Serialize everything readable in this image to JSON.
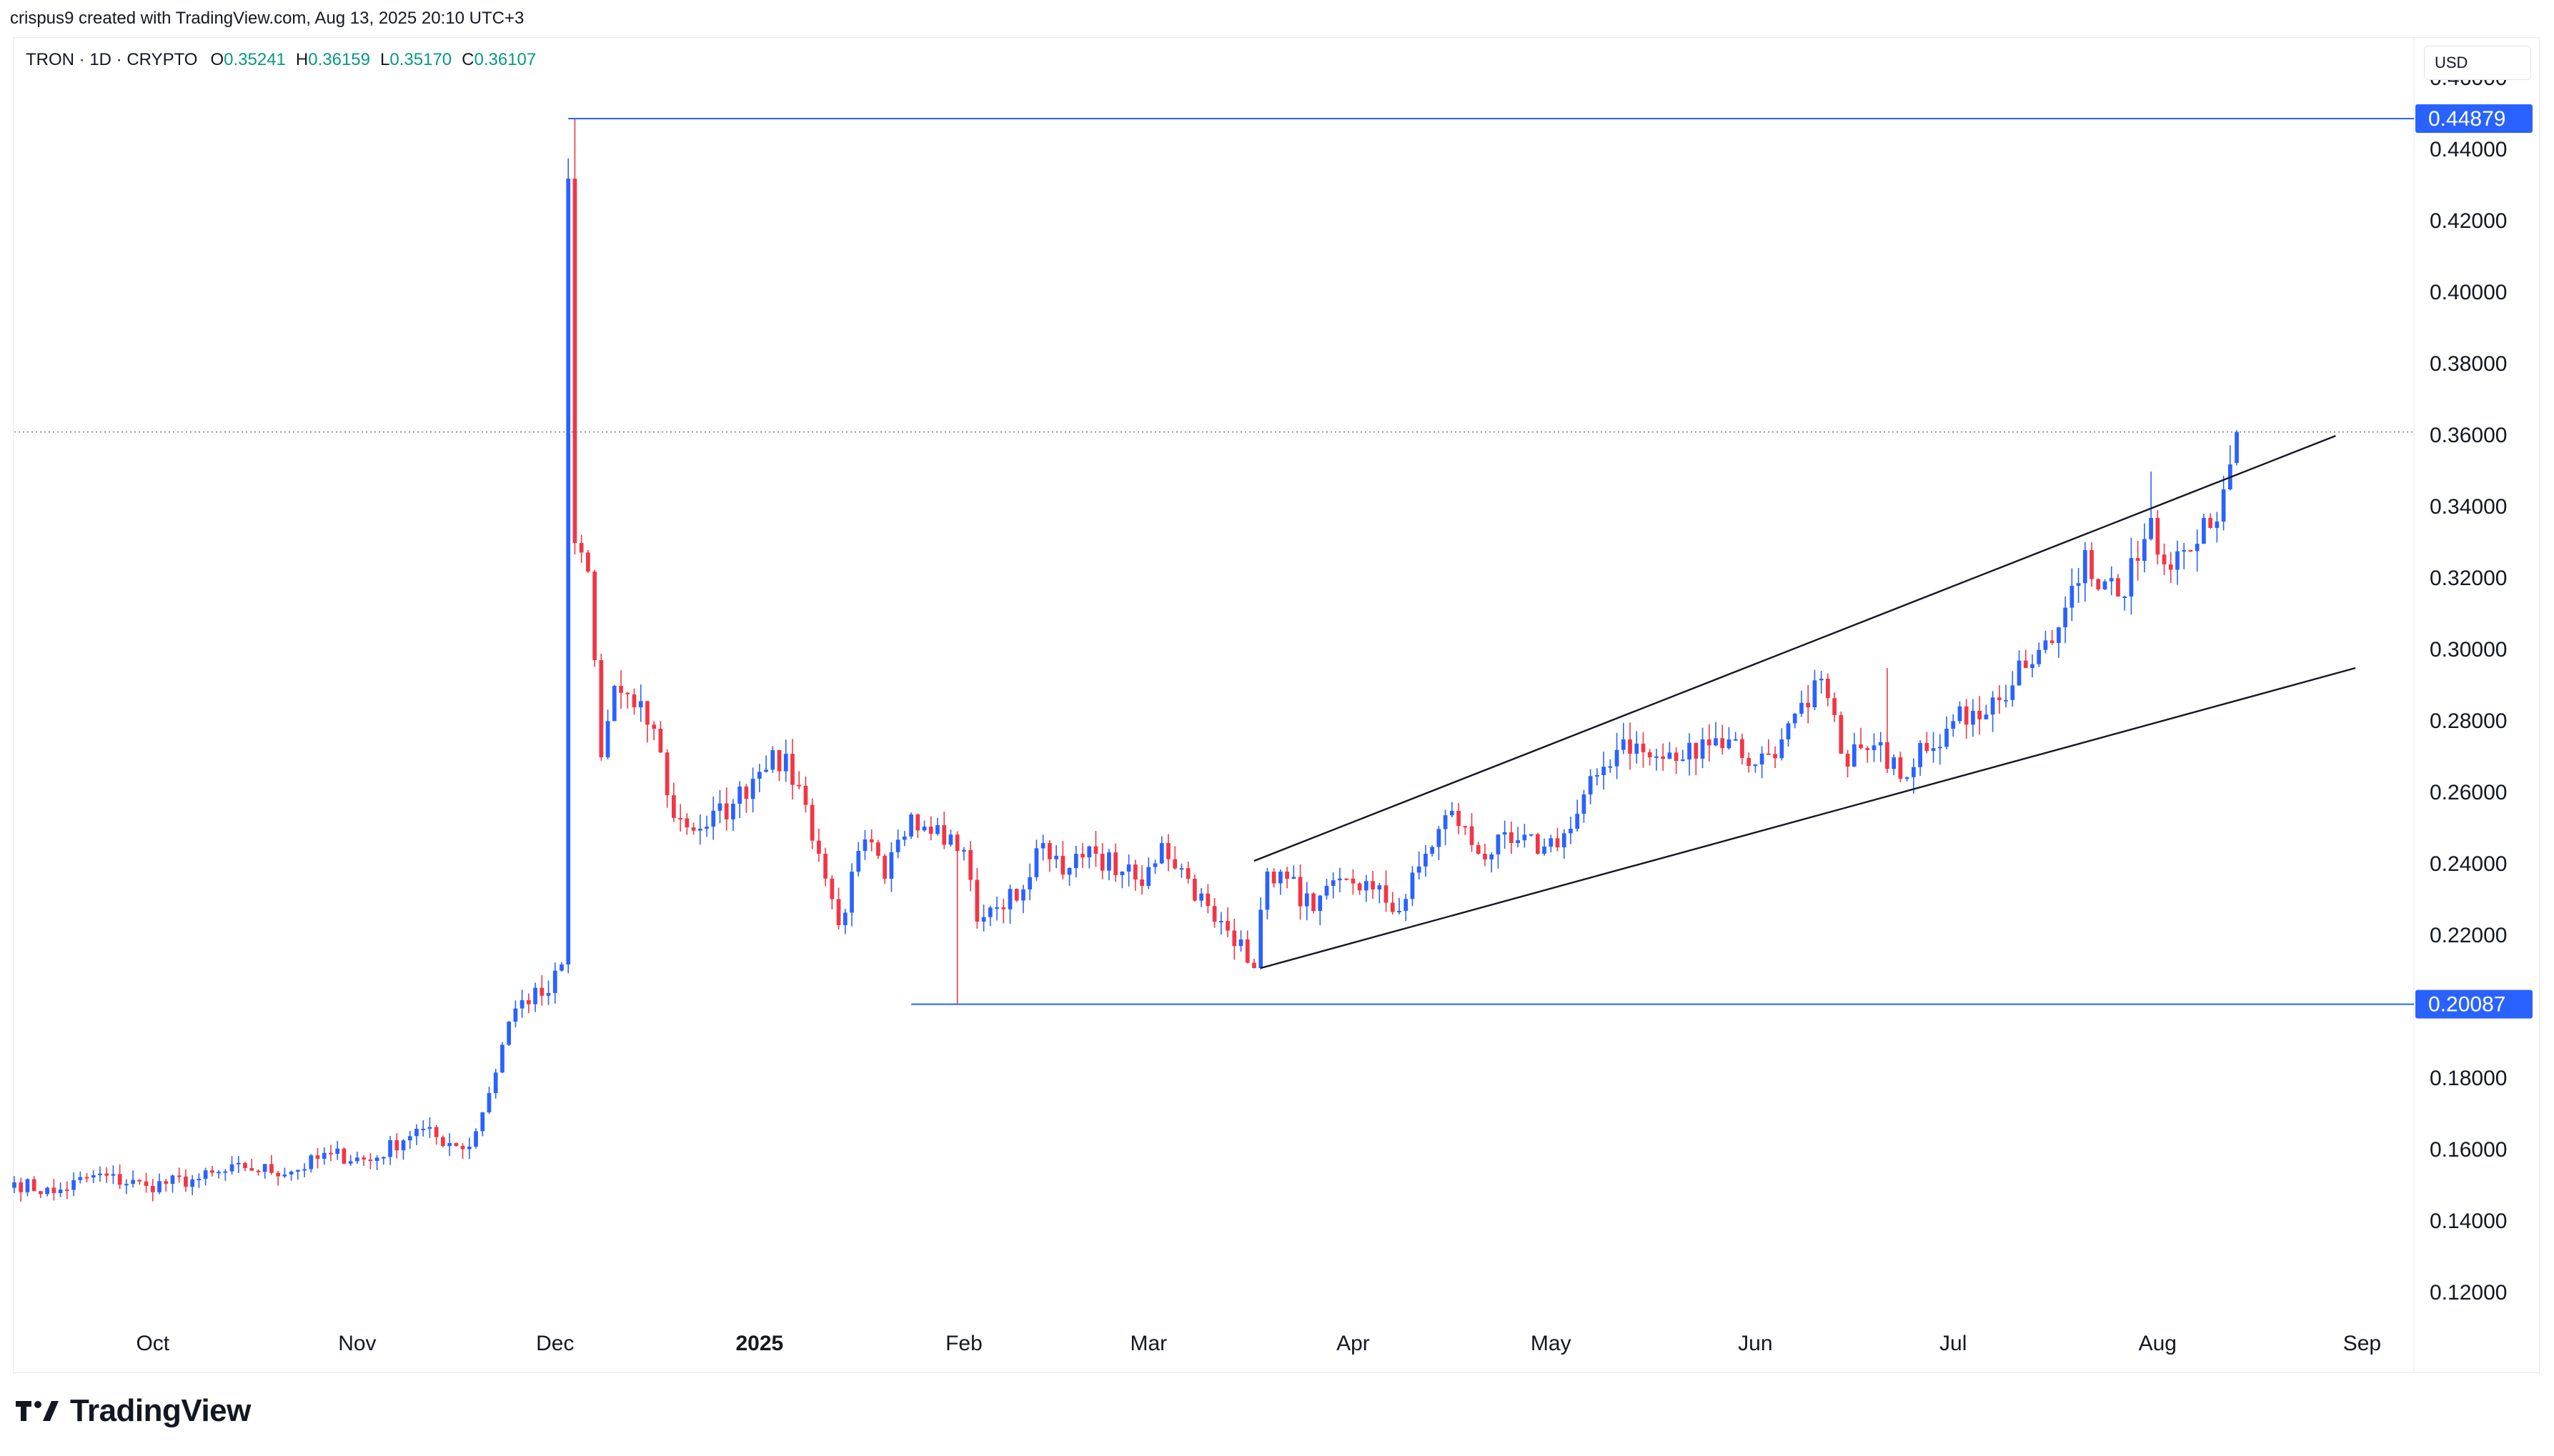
{
  "header": {
    "created_by": "crispus9 created with TradingView.com, Aug 13, 2025 20:10 UTC+3"
  },
  "legend": {
    "symbol": "TRON · 1D · CRYPTO",
    "open_label": "O",
    "open": "0.35241",
    "high_label": "H",
    "high": "0.36159",
    "low_label": "L",
    "low": "0.35170",
    "close_label": "C",
    "close": "0.36107"
  },
  "currency_button": "USD",
  "brand": {
    "name": "TradingView",
    "logo_icon": "tradingview-logo-icon"
  },
  "colors": {
    "up": "#2962ff",
    "down": "#f23645",
    "level": "#2962ff",
    "trend": "#131722",
    "axis_text": "#131722"
  },
  "chart_data": {
    "type": "candlestick",
    "symbol": "TRON",
    "interval": "1D",
    "y_axis": {
      "ylim": [
        0.11,
        0.47
      ],
      "ticks": [
        "0.46000",
        "0.44000",
        "0.42000",
        "0.40000",
        "0.38000",
        "0.36000",
        "0.34000",
        "0.32000",
        "0.30000",
        "0.28000",
        "0.26000",
        "0.24000",
        "0.22000",
        "0.20000",
        "0.18000",
        "0.16000",
        "0.14000",
        "0.12000"
      ]
    },
    "x_axis": {
      "xlim": [
        "2024-09-10",
        "2025-09-08"
      ],
      "ticks": [
        {
          "date": "2024-10-01",
          "label": "Oct",
          "bold": false
        },
        {
          "date": "2024-11-01",
          "label": "Nov",
          "bold": false
        },
        {
          "date": "2024-12-01",
          "label": "Dec",
          "bold": false
        },
        {
          "date": "2025-01-01",
          "label": "2025",
          "bold": true
        },
        {
          "date": "2025-02-01",
          "label": "Feb",
          "bold": false
        },
        {
          "date": "2025-03-01",
          "label": "Mar",
          "bold": false
        },
        {
          "date": "2025-04-01",
          "label": "Apr",
          "bold": false
        },
        {
          "date": "2025-05-01",
          "label": "May",
          "bold": false
        },
        {
          "date": "2025-06-01",
          "label": "Jun",
          "bold": false
        },
        {
          "date": "2025-07-01",
          "label": "Jul",
          "bold": false
        },
        {
          "date": "2025-08-01",
          "label": "Aug",
          "bold": false
        },
        {
          "date": "2025-09-01",
          "label": "Sep",
          "bold": false
        }
      ]
    },
    "close_anchors": [
      [
        "2024-09-10",
        0.151
      ],
      [
        "2024-09-16",
        0.148
      ],
      [
        "2024-09-22",
        0.153
      ],
      [
        "2024-09-30",
        0.15
      ],
      [
        "2024-10-08",
        0.152
      ],
      [
        "2024-10-15",
        0.155
      ],
      [
        "2024-10-22",
        0.154
      ],
      [
        "2024-10-28",
        0.159
      ],
      [
        "2024-11-03",
        0.157
      ],
      [
        "2024-11-10",
        0.166
      ],
      [
        "2024-11-15",
        0.162
      ],
      [
        "2024-11-18",
        0.161
      ],
      [
        "2024-11-21",
        0.176
      ],
      [
        "2024-11-24",
        0.196
      ],
      [
        "2024-11-26",
        0.202
      ],
      [
        "2024-11-30",
        0.204
      ],
      [
        "2024-12-02",
        0.212
      ],
      [
        "2024-12-03",
        0.432
      ],
      [
        "2024-12-04",
        0.33
      ],
      [
        "2024-12-06",
        0.322
      ],
      [
        "2024-12-08",
        0.27
      ],
      [
        "2024-12-10",
        0.29
      ],
      [
        "2024-12-13",
        0.284
      ],
      [
        "2024-12-16",
        0.278
      ],
      [
        "2024-12-19",
        0.253
      ],
      [
        "2024-12-23",
        0.25
      ],
      [
        "2024-12-28",
        0.257
      ],
      [
        "2024-12-31",
        0.264
      ],
      [
        "2025-01-03",
        0.272
      ],
      [
        "2025-01-07",
        0.262
      ],
      [
        "2025-01-10",
        0.243
      ],
      [
        "2025-01-13",
        0.223
      ],
      [
        "2025-01-17",
        0.247
      ],
      [
        "2025-01-20",
        0.236
      ],
      [
        "2025-01-24",
        0.254
      ],
      [
        "2025-01-28",
        0.251
      ],
      [
        "2025-02-01",
        0.244
      ],
      [
        "2025-02-03",
        0.224
      ],
      [
        "2025-02-06",
        0.228
      ],
      [
        "2025-02-10",
        0.233
      ],
      [
        "2025-02-13",
        0.246
      ],
      [
        "2025-02-17",
        0.239
      ],
      [
        "2025-02-21",
        0.243
      ],
      [
        "2025-02-25",
        0.238
      ],
      [
        "2025-02-28",
        0.234
      ],
      [
        "2025-03-03",
        0.246
      ],
      [
        "2025-03-07",
        0.236
      ],
      [
        "2025-03-11",
        0.224
      ],
      [
        "2025-03-15",
        0.219
      ],
      [
        "2025-03-17",
        0.211
      ],
      [
        "2025-03-19",
        0.238
      ],
      [
        "2025-03-22",
        0.236
      ],
      [
        "2025-03-26",
        0.227
      ],
      [
        "2025-03-31",
        0.236
      ],
      [
        "2025-04-04",
        0.233
      ],
      [
        "2025-04-08",
        0.227
      ],
      [
        "2025-04-12",
        0.243
      ],
      [
        "2025-04-16",
        0.255
      ],
      [
        "2025-04-20",
        0.243
      ],
      [
        "2025-04-25",
        0.246
      ],
      [
        "2025-04-30",
        0.245
      ],
      [
        "2025-05-04",
        0.25
      ],
      [
        "2025-05-08",
        0.265
      ],
      [
        "2025-05-12",
        0.275
      ],
      [
        "2025-05-16",
        0.27
      ],
      [
        "2025-05-20",
        0.269
      ],
      [
        "2025-05-24",
        0.275
      ],
      [
        "2025-05-28",
        0.275
      ],
      [
        "2025-06-01",
        0.268
      ],
      [
        "2025-06-05",
        0.275
      ],
      [
        "2025-06-09",
        0.284
      ],
      [
        "2025-06-11",
        0.292
      ],
      [
        "2025-06-14",
        0.271
      ],
      [
        "2025-06-18",
        0.272
      ],
      [
        "2025-06-22",
        0.27
      ],
      [
        "2025-06-23",
        0.264
      ],
      [
        "2025-06-26",
        0.274
      ],
      [
        "2025-06-30",
        0.278
      ],
      [
        "2025-07-04",
        0.283
      ],
      [
        "2025-07-08",
        0.286
      ],
      [
        "2025-07-12",
        0.295
      ],
      [
        "2025-07-16",
        0.302
      ],
      [
        "2025-07-19",
        0.318
      ],
      [
        "2025-07-21",
        0.328
      ],
      [
        "2025-07-23",
        0.317
      ],
      [
        "2025-07-26",
        0.315
      ],
      [
        "2025-07-29",
        0.325
      ],
      [
        "2025-07-31",
        0.337
      ],
      [
        "2025-08-02",
        0.324
      ],
      [
        "2025-08-05",
        0.328
      ],
      [
        "2025-08-08",
        0.337
      ],
      [
        "2025-08-10",
        0.336
      ],
      [
        "2025-08-11",
        0.345
      ],
      [
        "2025-08-12",
        0.352
      ],
      [
        "2025-08-13",
        0.36107
      ]
    ],
    "spikes": [
      {
        "date": "2024-12-04",
        "high": 0.44879
      },
      {
        "date": "2025-01-31",
        "low": 0.20087
      },
      {
        "date": "2025-07-31",
        "high": 0.35
      },
      {
        "date": "2025-06-21",
        "high": 0.295
      }
    ],
    "levels": [
      {
        "value": 0.44879,
        "label": "0.44879",
        "from": "2024-12-03"
      },
      {
        "value": 0.20087,
        "label": "0.20087",
        "from": "2025-01-24"
      }
    ],
    "current_price": 0.36107,
    "trendlines": [
      {
        "name": "upper",
        "points": [
          [
            "2025-03-17",
            0.241
          ],
          [
            "2025-08-28",
            0.36
          ]
        ]
      },
      {
        "name": "lower",
        "points": [
          [
            "2025-03-18",
            0.211
          ],
          [
            "2025-08-31",
            0.295
          ]
        ]
      }
    ]
  }
}
